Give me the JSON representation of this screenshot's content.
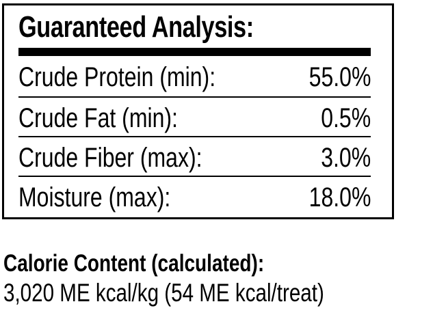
{
  "analysis": {
    "title": "Guaranteed Analysis:",
    "rows": [
      {
        "label": "Crude Protein (min):",
        "value": "55.0%"
      },
      {
        "label": "Crude Fat (min):",
        "value": "0.5%"
      },
      {
        "label": "Crude Fiber (max):",
        "value": "3.0%"
      },
      {
        "label": "Moisture (max):",
        "value": "18.0%"
      }
    ]
  },
  "calorie": {
    "heading": "Calorie Content (calculated):",
    "value": "3,020 ME kcal/kg (54 ME kcal/treat)"
  }
}
